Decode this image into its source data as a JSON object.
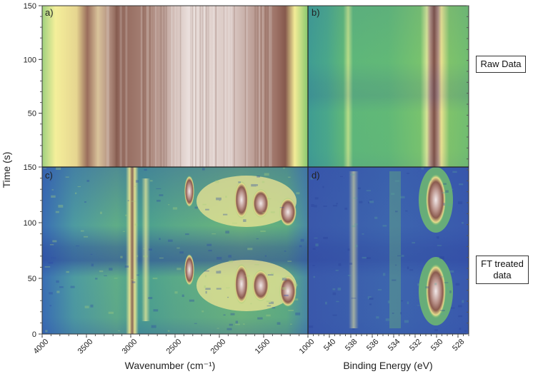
{
  "side_labels": {
    "raw": "Raw Data",
    "ft_line1": "FT treated",
    "ft_line2": "data"
  },
  "colors": {
    "yellow": "#f4ef9a",
    "green": "#7fc46a",
    "teal": "#3fa88f",
    "blue": "#3b56b0",
    "brown": "#8a5a4e",
    "pale": "#e9dcd9"
  },
  "chart_data": [
    {
      "panel": "a)",
      "type": "heatmap",
      "xlabel": "Wavenumber (cm⁻¹)",
      "ylabel": "Time (s)",
      "xlim": [
        4000,
        1000
      ],
      "ylim": [
        0,
        150
      ],
      "xticks": [
        4000,
        3500,
        3000,
        2500,
        2000,
        1500,
        1000
      ],
      "yticks": [
        50,
        100,
        150
      ],
      "bands": [
        {
          "x": 3950,
          "level": "green-yellow"
        },
        {
          "x": 3720,
          "level": "brown"
        },
        {
          "x": 3400,
          "level": "brown-pale"
        },
        {
          "x": 2000,
          "level": "pale"
        },
        {
          "x": 1180,
          "level": "brown"
        },
        {
          "x": 1020,
          "level": "yellow-green"
        }
      ]
    },
    {
      "panel": "b)",
      "type": "heatmap",
      "xlabel": "Binding Energy (eV)",
      "xlim": [
        542,
        527
      ],
      "ylim": [
        0,
        150
      ],
      "bands": [
        {
          "x": 538,
          "level": "yellow-green"
        },
        {
          "x": 534.5,
          "level": "green"
        },
        {
          "x": 530,
          "level": "brown"
        }
      ]
    },
    {
      "panel": "c)",
      "type": "heatmap",
      "xlabel": "Wavenumber (cm⁻¹)",
      "ylabel": "Time (s)",
      "xlim": [
        4000,
        1000
      ],
      "ylim": [
        0,
        150
      ],
      "xticks": [
        4000,
        3500,
        3000,
        2500,
        2000,
        1500,
        1000
      ],
      "xtick_labels": [
        "4000",
        "3500",
        "3000",
        "2500",
        "2000",
        "1500",
        "1000"
      ],
      "yticks": [
        0,
        50,
        100,
        150
      ],
      "ytick_labels": [
        "0",
        "50",
        "100",
        "150"
      ],
      "bands": [
        {
          "x": 3000,
          "level": "brown"
        },
        {
          "x": 2850,
          "level": "yellow"
        },
        {
          "x": 2340,
          "level": "brown"
        },
        {
          "x": 1750,
          "level": "pale"
        },
        {
          "x": 1550,
          "level": "brown"
        },
        {
          "x": 1250,
          "level": "pale"
        }
      ]
    },
    {
      "panel": "d)",
      "type": "heatmap",
      "xlabel": "Binding Energy (eV)",
      "xlim": [
        542,
        527
      ],
      "ylim": [
        0,
        150
      ],
      "xticks": [
        540,
        538,
        536,
        534,
        532,
        530,
        528
      ],
      "xtick_labels": [
        "540",
        "538",
        "536",
        "534",
        "532",
        "530",
        "528"
      ],
      "bands": [
        {
          "x": 538,
          "level": "yellow"
        },
        {
          "x": 534.5,
          "level": "green"
        },
        {
          "x": 530,
          "level": "pale"
        }
      ]
    }
  ]
}
